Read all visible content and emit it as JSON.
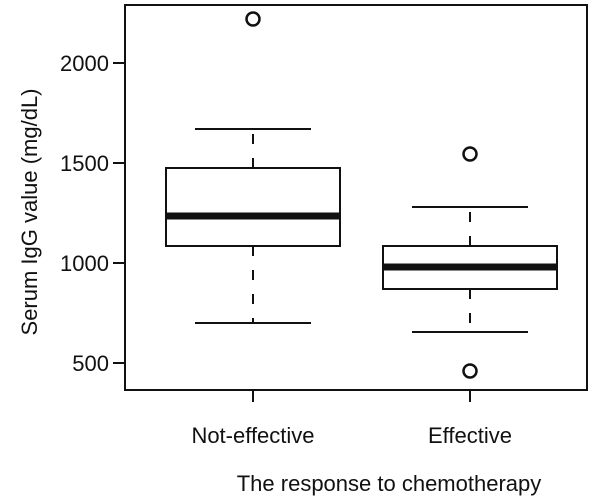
{
  "chart_data": {
    "type": "box",
    "xlabel": "The response to chemotherapy",
    "ylabel": "Serum IgG value (mg/dL)",
    "ylim": [
      400,
      2300
    ],
    "yticks": [
      500,
      1000,
      1500,
      2000
    ],
    "categories": [
      "Not-effective",
      "Effective"
    ],
    "boxes": [
      {
        "category": "Not-effective",
        "whisker_low": 700,
        "q1": 1085,
        "median": 1235,
        "q3": 1475,
        "whisker_high": 1670,
        "outliers": [
          2220
        ]
      },
      {
        "category": "Effective",
        "whisker_low": 655,
        "q1": 870,
        "median": 980,
        "q3": 1085,
        "whisker_high": 1280,
        "outliers": [
          1545,
          460
        ]
      }
    ],
    "grid": false,
    "legend": "none"
  }
}
